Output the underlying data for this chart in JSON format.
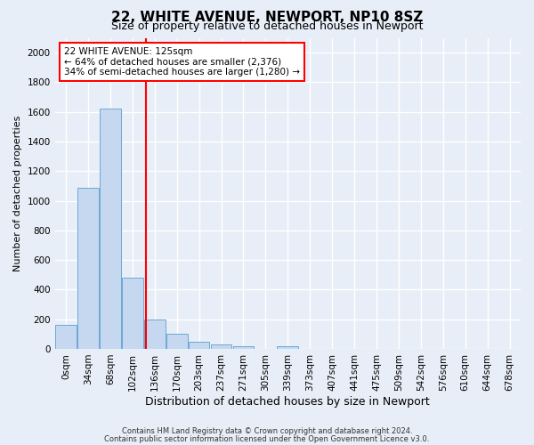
{
  "title_line1": "22, WHITE AVENUE, NEWPORT, NP10 8SZ",
  "title_line2": "Size of property relative to detached houses in Newport",
  "xlabel": "Distribution of detached houses by size in Newport",
  "ylabel": "Number of detached properties",
  "bar_labels": [
    "0sqm",
    "34sqm",
    "68sqm",
    "102sqm",
    "136sqm",
    "170sqm",
    "203sqm",
    "237sqm",
    "271sqm",
    "305sqm",
    "339sqm",
    "373sqm",
    "407sqm",
    "441sqm",
    "475sqm",
    "509sqm",
    "542sqm",
    "576sqm",
    "610sqm",
    "644sqm",
    "678sqm"
  ],
  "bar_values": [
    165,
    1085,
    1625,
    480,
    200,
    100,
    45,
    30,
    20,
    0,
    20,
    0,
    0,
    0,
    0,
    0,
    0,
    0,
    0,
    0,
    0
  ],
  "bar_color": "#c5d8f0",
  "bar_edgecolor": "#6aaad4",
  "ylim": [
    0,
    2100
  ],
  "yticks": [
    0,
    200,
    400,
    600,
    800,
    1000,
    1200,
    1400,
    1600,
    1800,
    2000
  ],
  "vline_x": 3.62,
  "vline_color": "red",
  "annotation_line1": "22 WHITE AVENUE: 125sqm",
  "annotation_line2": "← 64% of detached houses are smaller (2,376)",
  "annotation_line3": "34% of semi-detached houses are larger (1,280) →",
  "annotation_box_color": "white",
  "annotation_box_edgecolor": "red",
  "footer_line1": "Contains HM Land Registry data © Crown copyright and database right 2024.",
  "footer_line2": "Contains public sector information licensed under the Open Government Licence v3.0.",
  "bg_color": "#e8eef7",
  "plot_bg_color": "#e8eef7",
  "grid_color": "white",
  "title1_fontsize": 11,
  "title2_fontsize": 9,
  "ylabel_fontsize": 8,
  "xlabel_fontsize": 9,
  "tick_fontsize": 7.5,
  "ann_fontsize": 7.5
}
